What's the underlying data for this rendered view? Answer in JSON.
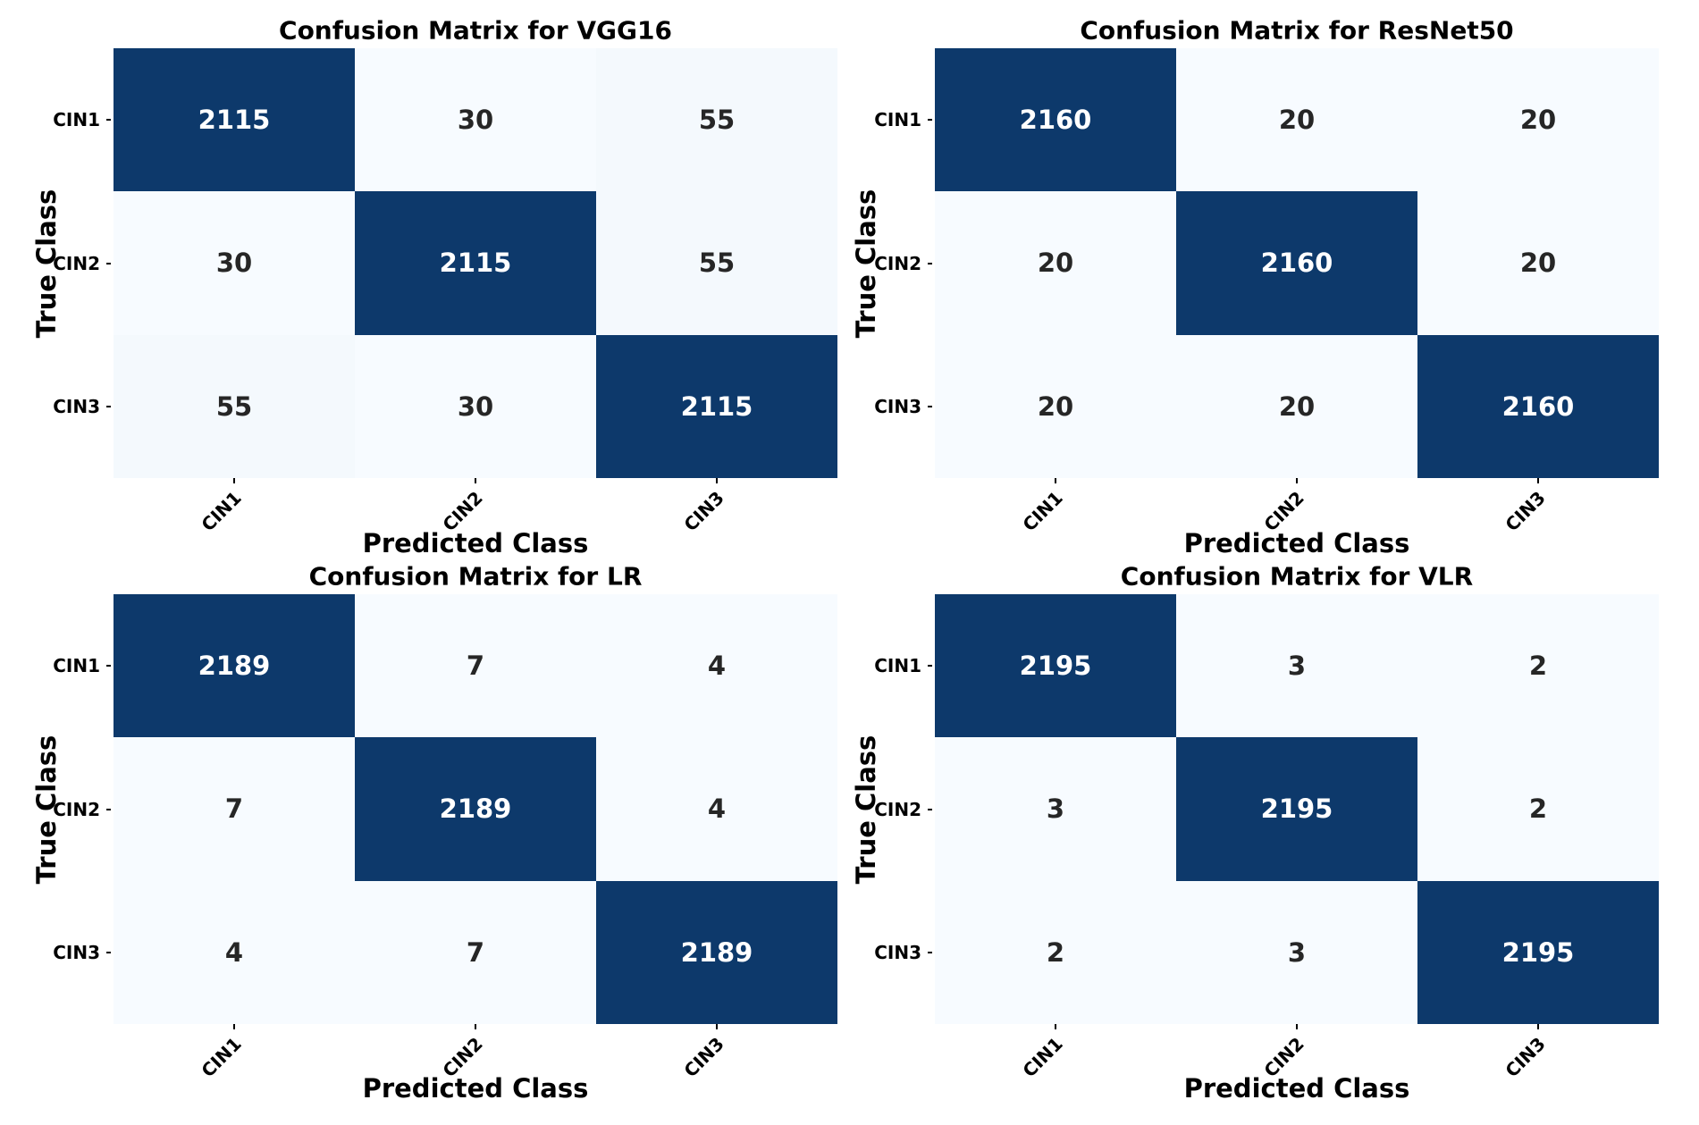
{
  "colors": {
    "background": "#ffffff",
    "cmap_low": "#f7fbff",
    "cmap_high": "#0d396b",
    "diag_text": "#ffffff",
    "offdiag_text": "#262626",
    "axis_text": "#000000"
  },
  "chart_data": [
    {
      "type": "heatmap",
      "title": "Confusion Matrix for VGG16",
      "xlabel": "Predicted Class",
      "ylabel": "True Class",
      "x_categories": [
        "CIN1",
        "CIN2",
        "CIN3"
      ],
      "y_categories": [
        "CIN1",
        "CIN2",
        "CIN3"
      ],
      "matrix": [
        [
          2115,
          30,
          55
        ],
        [
          30,
          2115,
          55
        ],
        [
          55,
          30,
          2115
        ]
      ],
      "legend": "none",
      "grid": false
    },
    {
      "type": "heatmap",
      "title": "Confusion Matrix for ResNet50",
      "xlabel": "Predicted Class",
      "ylabel": "True Class",
      "x_categories": [
        "CIN1",
        "CIN2",
        "CIN3"
      ],
      "y_categories": [
        "CIN1",
        "CIN2",
        "CIN3"
      ],
      "matrix": [
        [
          2160,
          20,
          20
        ],
        [
          20,
          2160,
          20
        ],
        [
          20,
          20,
          2160
        ]
      ],
      "legend": "none",
      "grid": false
    },
    {
      "type": "heatmap",
      "title": "Confusion Matrix for LR",
      "xlabel": "Predicted Class",
      "ylabel": "True Class",
      "x_categories": [
        "CIN1",
        "CIN2",
        "CIN3"
      ],
      "y_categories": [
        "CIN1",
        "CIN2",
        "CIN3"
      ],
      "matrix": [
        [
          2189,
          7,
          4
        ],
        [
          7,
          2189,
          4
        ],
        [
          4,
          7,
          2189
        ]
      ],
      "legend": "none",
      "grid": false
    },
    {
      "type": "heatmap",
      "title": "Confusion Matrix for VLR",
      "xlabel": "Predicted Class",
      "ylabel": "True Class",
      "x_categories": [
        "CIN1",
        "CIN2",
        "CIN3"
      ],
      "y_categories": [
        "CIN1",
        "CIN2",
        "CIN3"
      ],
      "matrix": [
        [
          2195,
          3,
          2
        ],
        [
          3,
          2195,
          2
        ],
        [
          2,
          3,
          2195
        ]
      ],
      "legend": "none",
      "grid": false
    }
  ]
}
